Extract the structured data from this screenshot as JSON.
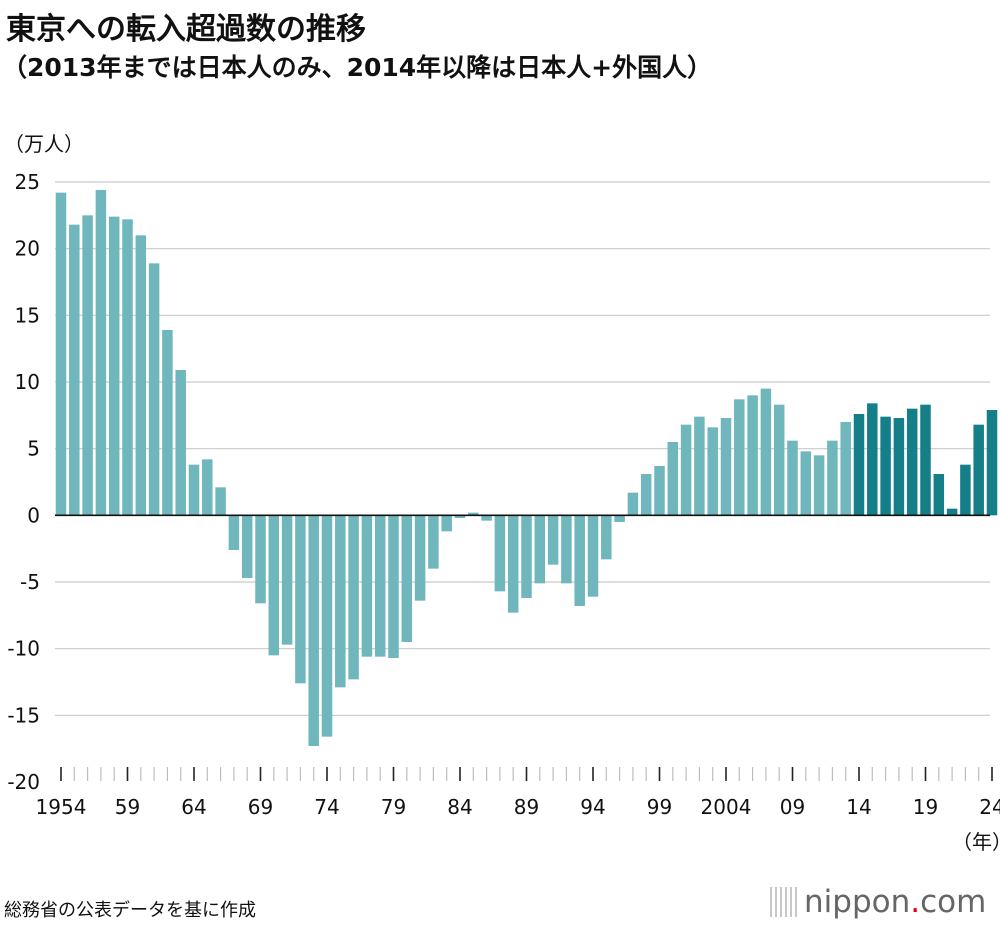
{
  "chart_data": {
    "type": "bar",
    "title": "東京への転入超過数の推移",
    "subtitle": "（2013年までは日本人のみ、2014年以降は日本人+外国人）",
    "ylabel": "（万人）",
    "xlabel": "（年）",
    "ylim": [
      -20,
      25
    ],
    "yticks": [
      25,
      20,
      15,
      10,
      5,
      0,
      -5,
      -10,
      -15,
      -20
    ],
    "x_start": 1954,
    "x_end": 2024,
    "xtick_labels": [
      {
        "year": 1954,
        "label": "1954"
      },
      {
        "year": 1959,
        "label": "59"
      },
      {
        "year": 1964,
        "label": "64"
      },
      {
        "year": 1969,
        "label": "69"
      },
      {
        "year": 1974,
        "label": "74"
      },
      {
        "year": 1979,
        "label": "79"
      },
      {
        "year": 1984,
        "label": "84"
      },
      {
        "year": 1989,
        "label": "89"
      },
      {
        "year": 1994,
        "label": "94"
      },
      {
        "year": 1999,
        "label": "99"
      },
      {
        "year": 2004,
        "label": "2004"
      },
      {
        "year": 2009,
        "label": "09"
      },
      {
        "year": 2014,
        "label": "14"
      },
      {
        "year": 2019,
        "label": "19"
      },
      {
        "year": 2024,
        "label": "24"
      }
    ],
    "series": [
      {
        "name": "日本人のみ",
        "color": "#6fb7bd",
        "start_year": 1954,
        "values": [
          24.2,
          21.8,
          22.5,
          24.4,
          22.4,
          22.2,
          21.0,
          18.9,
          13.9,
          10.9,
          3.8,
          4.2,
          2.1,
          -2.6,
          -4.7,
          -6.6,
          -10.5,
          -9.7,
          -12.6,
          -17.3,
          -16.6,
          -12.9,
          -12.3,
          -10.6,
          -10.6,
          -10.7,
          -9.5,
          -6.4,
          -4.0,
          -1.2,
          -0.2,
          0.2,
          -0.4,
          -5.7,
          -7.3,
          -6.2,
          -5.1,
          -3.7,
          -5.1,
          -6.8,
          -6.1,
          -3.3,
          -0.5,
          1.7,
          3.1,
          3.7,
          5.5,
          6.8,
          7.4,
          6.6,
          7.3,
          8.7,
          9.0,
          9.5,
          8.3,
          5.6,
          4.8,
          4.5,
          5.6,
          7.0
        ]
      },
      {
        "name": "日本人+外国人",
        "color": "#157f89",
        "start_year": 2014,
        "values": [
          7.6,
          8.4,
          7.4,
          7.3,
          8.0,
          8.3,
          3.1,
          0.5,
          3.8,
          6.8,
          7.9
        ]
      }
    ]
  },
  "source": "総務省の公表データを基に作成",
  "logo": {
    "name": "nippon",
    "dot": ".",
    "suffix": "com"
  }
}
